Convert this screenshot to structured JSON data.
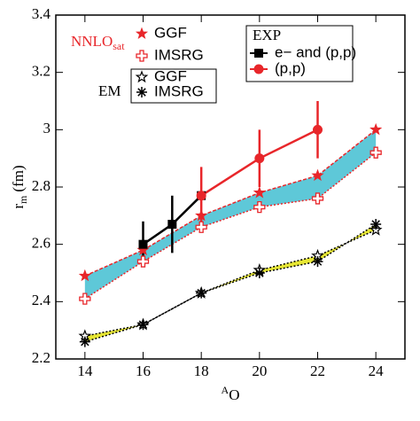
{
  "chart_data": {
    "type": "line",
    "xlabel": {
      "sup": "A",
      "main": "O"
    },
    "ylabel": {
      "main": "r",
      "sub": "m",
      "rest": "(fm)"
    },
    "xlim": [
      13,
      25
    ],
    "ylim": [
      2.2,
      3.4
    ],
    "xticks": [
      14,
      16,
      18,
      20,
      22,
      24
    ],
    "yticks": [
      2.2,
      2.4,
      2.6,
      2.8,
      3,
      3.2,
      3.4
    ],
    "legend_groups": [
      {
        "label": "NNLO",
        "subscript": "sat",
        "color": "#e8262a"
      },
      {
        "label": "EM",
        "color": "#000000"
      },
      {
        "label": "EXP",
        "color": "#000000"
      }
    ],
    "series": [
      {
        "name": "GGF",
        "group": 0,
        "color": "#e8262a",
        "marker": "star-filled",
        "dash": "4,2",
        "x": [
          14,
          16,
          18,
          20,
          22,
          24
        ],
        "values": [
          2.49,
          2.58,
          2.7,
          2.78,
          2.84,
          3.0
        ]
      },
      {
        "name": "IMSRG",
        "group": 0,
        "color": "#e8262a",
        "marker": "cross-open",
        "dash": "2,2",
        "x": [
          14,
          16,
          18,
          20,
          22,
          24
        ],
        "values": [
          2.41,
          2.54,
          2.66,
          2.73,
          2.76,
          2.92
        ]
      },
      {
        "name": "GGF",
        "group": 1,
        "color": "#000000",
        "marker": "star-open",
        "dash": "2,2",
        "x": [
          14,
          16,
          18,
          20,
          22,
          24
        ],
        "values": [
          2.28,
          2.32,
          2.43,
          2.51,
          2.56,
          2.65
        ]
      },
      {
        "name": "IMSRG",
        "group": 1,
        "color": "#000000",
        "marker": "asterisk",
        "dash": "2,2",
        "x": [
          14,
          16,
          18,
          20,
          22,
          24
        ],
        "values": [
          2.26,
          2.32,
          2.43,
          2.5,
          2.54,
          2.67
        ]
      },
      {
        "name": "e− and (p,p)",
        "group": 2,
        "color": "#000000",
        "marker": "square",
        "x": [
          16,
          17,
          18
        ],
        "values": [
          2.6,
          2.67,
          2.77
        ],
        "errors": [
          0.08,
          0.1,
          null
        ]
      },
      {
        "name": "(p,p)",
        "group": 2,
        "color": "#e8262a",
        "marker": "circle",
        "x": [
          18,
          20,
          22
        ],
        "values": [
          2.77,
          2.9,
          3.0
        ],
        "errors": [
          0.1,
          0.1,
          0.1
        ]
      }
    ],
    "bands": [
      {
        "between": [
          0,
          1
        ],
        "color": "#5ec8d8"
      },
      {
        "between": [
          2,
          3
        ],
        "color": "#e6e633"
      }
    ]
  }
}
